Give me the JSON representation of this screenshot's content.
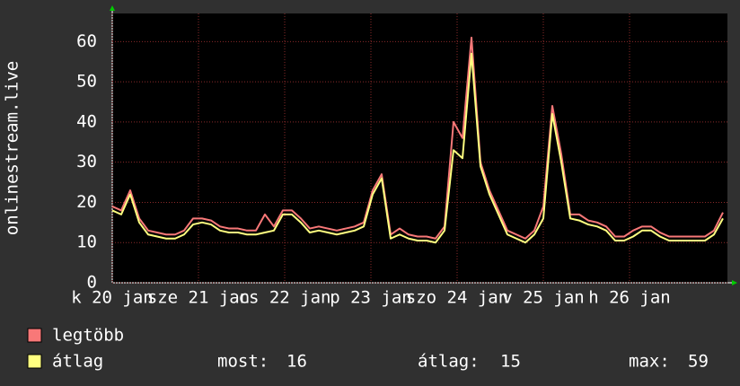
{
  "chart_data": {
    "type": "line",
    "ylabel": "onlinestream.live",
    "x_labels": [
      "k 20 jan",
      "sze 21 jan",
      "cs 22 jan",
      "p 23 jan",
      "szo 24 jan",
      "v 25 jan",
      "h 26 jan"
    ],
    "ylim": [
      0,
      67
    ],
    "yticks": [
      0,
      10,
      20,
      30,
      40,
      50,
      60
    ],
    "grid": true,
    "series": [
      {
        "name": "legtöbb",
        "color": "#f87878",
        "values": [
          19,
          18,
          23,
          16,
          13,
          12.5,
          12,
          12,
          13,
          16,
          16,
          15.5,
          14,
          13.5,
          13.5,
          13,
          13,
          17,
          14,
          18,
          18,
          16,
          13.5,
          14,
          13.5,
          13,
          13.5,
          14,
          15,
          23,
          27,
          12,
          13.5,
          12,
          11.5,
          11.5,
          11,
          14,
          40,
          36,
          61,
          30,
          23,
          18,
          13,
          12,
          11,
          13,
          19,
          44,
          32,
          17,
          17,
          15.5,
          15,
          14,
          11.5,
          11.5,
          13,
          14,
          14,
          12.5,
          11.5,
          11.5,
          11.5,
          11.5,
          11.5,
          13,
          17.5
        ]
      },
      {
        "name": "átlag",
        "color": "#ffff80",
        "values": [
          18,
          17,
          22,
          15,
          12,
          11.5,
          11,
          11,
          12,
          14.5,
          15,
          14.5,
          13,
          12.5,
          12.5,
          12,
          12,
          12.5,
          13,
          17,
          17,
          15,
          12.5,
          13,
          12.5,
          12,
          12.5,
          13,
          14,
          22,
          26,
          11,
          12,
          11,
          10.5,
          10.5,
          10,
          13,
          33,
          31,
          57,
          29,
          22,
          17,
          12,
          11,
          10,
          12,
          16,
          42,
          30,
          16,
          15.5,
          14.5,
          14,
          13,
          10.5,
          10.5,
          11.5,
          13,
          13,
          11.5,
          10.5,
          10.5,
          10.5,
          10.5,
          10.5,
          12,
          16
        ]
      }
    ],
    "stats": [
      {
        "label": "most:",
        "value": 16
      },
      {
        "label": "átlag:",
        "value": 15
      },
      {
        "label": "max:",
        "value": 59
      }
    ]
  }
}
